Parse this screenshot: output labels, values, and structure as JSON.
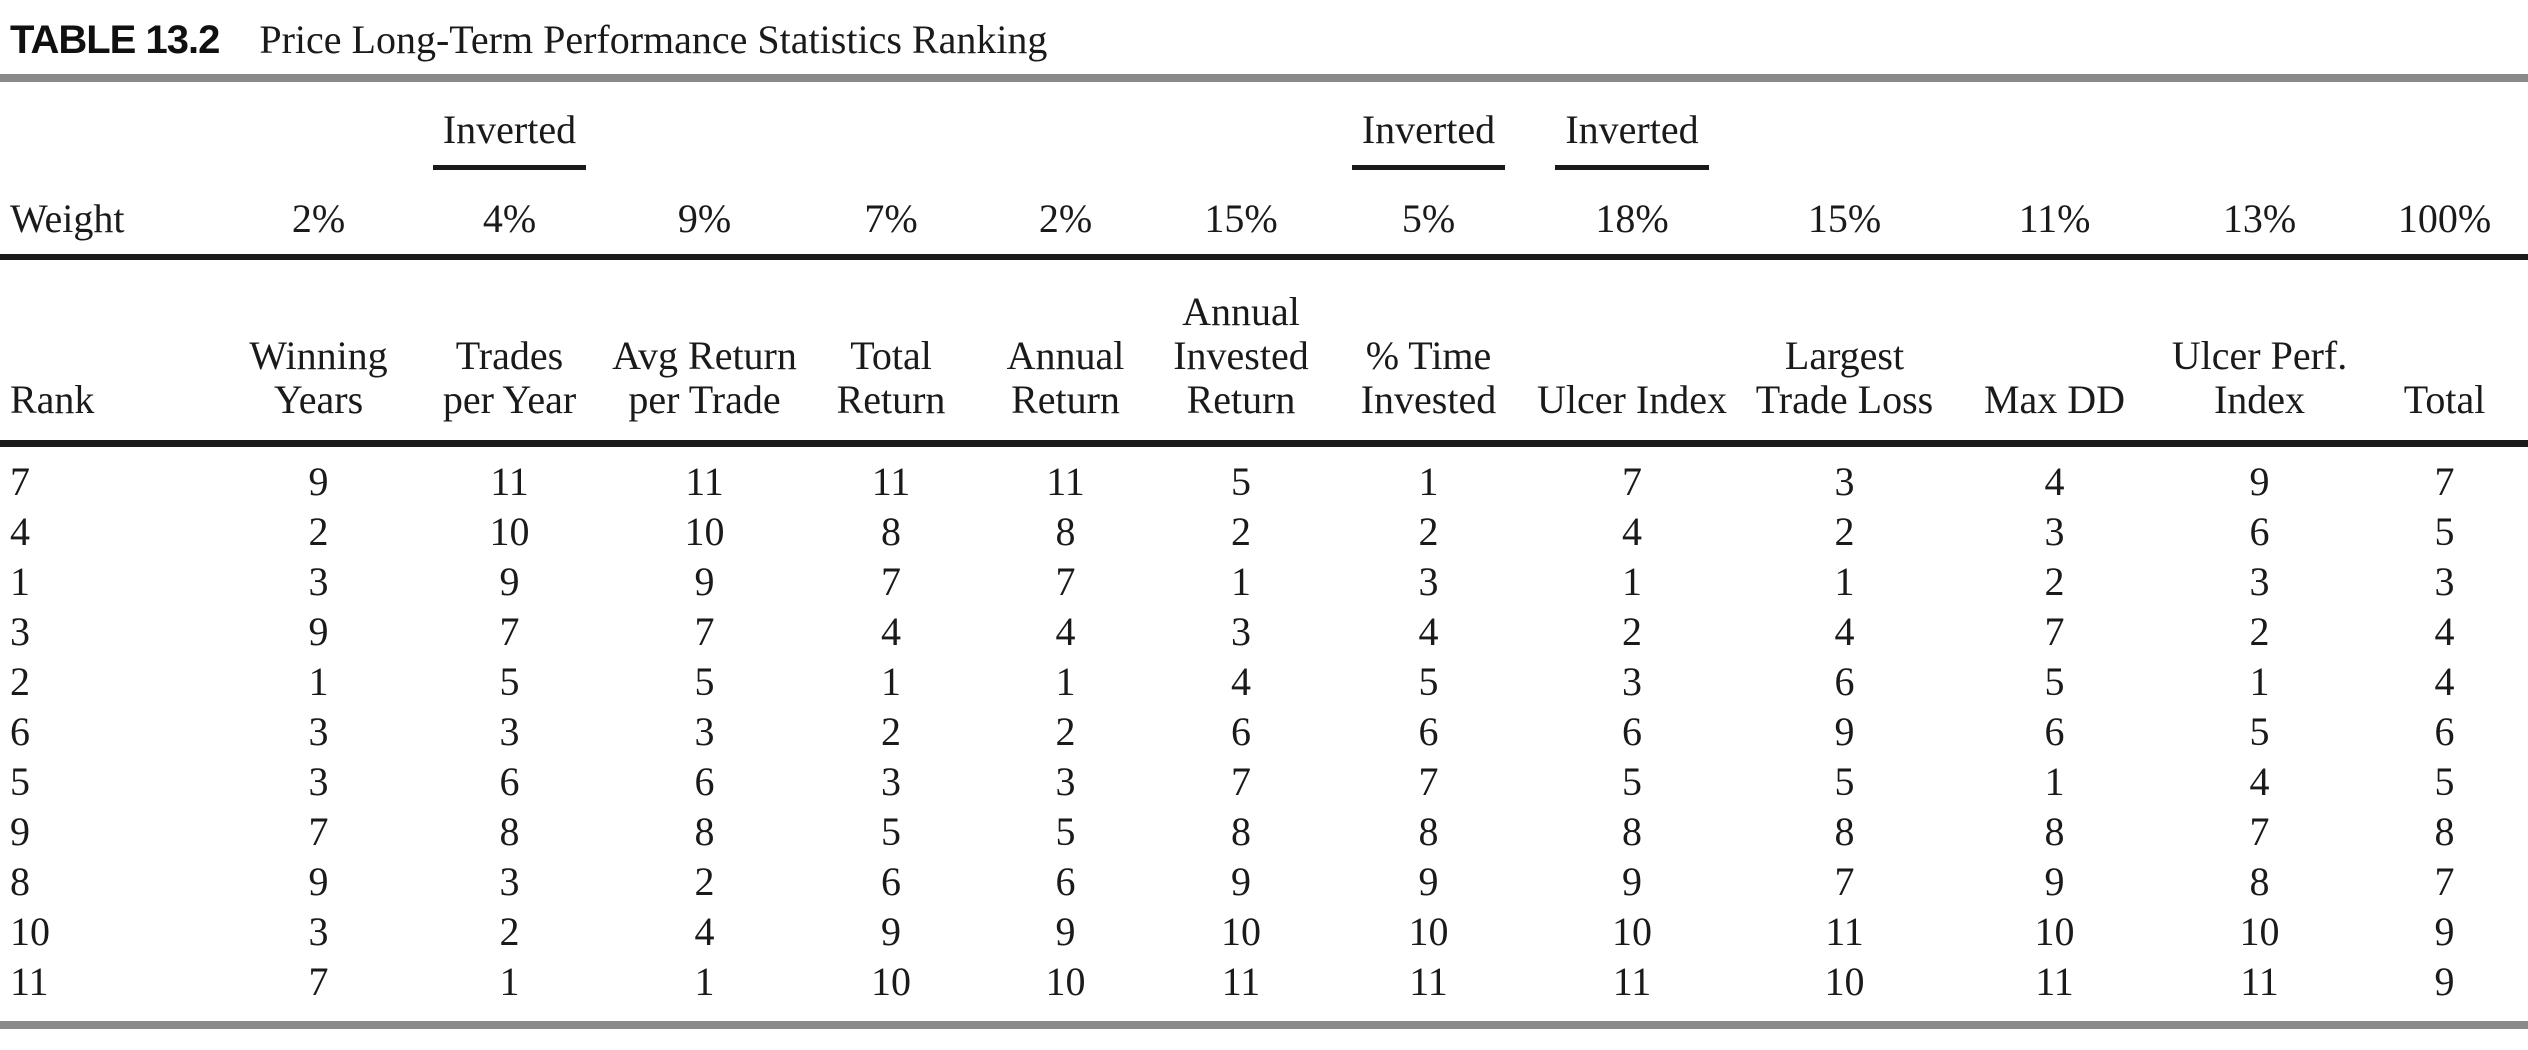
{
  "page": {
    "title_label": "TABLE 13.2",
    "title_text": "Price Long-Term Performance Statistics Ranking"
  },
  "table": {
    "inverted_label": "Inverted",
    "inverted_over_columns": [
      "Trades per Year",
      "% Time Invested",
      "Ulcer Index"
    ],
    "weight_label": "Weight",
    "weights": [
      "2%",
      "4%",
      "9%",
      "7%",
      "2%",
      "15%",
      "5%",
      "18%",
      "15%",
      "11%",
      "13%",
      "100%"
    ],
    "columns": [
      "Rank",
      "Winning\nYears",
      "Trades\nper Year",
      "Avg Return\nper Trade",
      "Total\nReturn",
      "Annual\nReturn",
      "Annual\nInvested\nReturn",
      "% Time\nInvested",
      "Ulcer Index",
      "Largest\nTrade Loss",
      "Max DD",
      "Ulcer Perf.\nIndex",
      "Total"
    ],
    "rows": [
      [
        "7",
        "9",
        "11",
        "11",
        "11",
        "11",
        "5",
        "1",
        "7",
        "3",
        "4",
        "9",
        "7"
      ],
      [
        "4",
        "2",
        "10",
        "10",
        "8",
        "8",
        "2",
        "2",
        "4",
        "2",
        "3",
        "6",
        "5"
      ],
      [
        "1",
        "3",
        "9",
        "9",
        "7",
        "7",
        "1",
        "3",
        "1",
        "1",
        "2",
        "3",
        "3"
      ],
      [
        "3",
        "9",
        "7",
        "7",
        "4",
        "4",
        "3",
        "4",
        "2",
        "4",
        "7",
        "2",
        "4"
      ],
      [
        "2",
        "1",
        "5",
        "5",
        "1",
        "1",
        "4",
        "5",
        "3",
        "6",
        "5",
        "1",
        "4"
      ],
      [
        "6",
        "3",
        "3",
        "3",
        "2",
        "2",
        "6",
        "6",
        "6",
        "9",
        "6",
        "5",
        "6"
      ],
      [
        "5",
        "3",
        "6",
        "6",
        "3",
        "3",
        "7",
        "7",
        "5",
        "5",
        "1",
        "4",
        "5"
      ],
      [
        "9",
        "7",
        "8",
        "8",
        "5",
        "5",
        "8",
        "8",
        "8",
        "8",
        "8",
        "7",
        "8"
      ],
      [
        "8",
        "9",
        "3",
        "2",
        "6",
        "6",
        "9",
        "9",
        "9",
        "7",
        "9",
        "8",
        "7"
      ],
      [
        "10",
        "3",
        "2",
        "4",
        "9",
        "9",
        "10",
        "10",
        "10",
        "11",
        "10",
        "10",
        "9"
      ],
      [
        "11",
        "7",
        "1",
        "1",
        "10",
        "10",
        "11",
        "11",
        "11",
        "10",
        "11",
        "11",
        "9"
      ]
    ]
  },
  "colors": {
    "rule_gray": "#8a8a8a",
    "rule_black": "#1a1a1a",
    "text": "#1a1a1a"
  }
}
